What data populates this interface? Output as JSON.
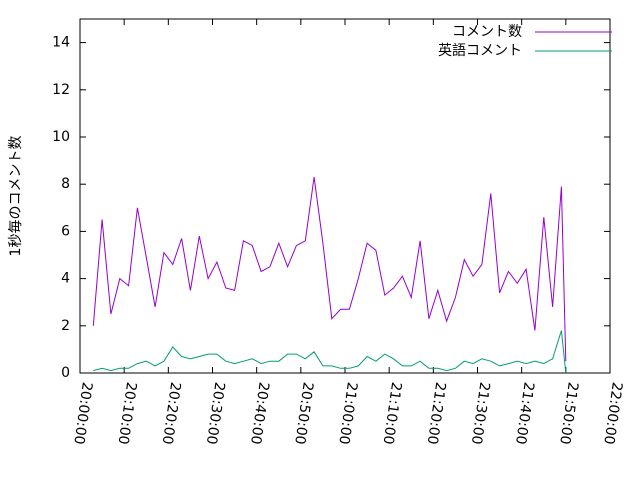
{
  "chart_data": {
    "type": "line",
    "ylabel": "1秒毎のコメント数",
    "x": [
      "20:03:00",
      "20:05:00",
      "20:07:00",
      "20:09:00",
      "20:11:00",
      "20:13:00",
      "20:15:00",
      "20:17:00",
      "20:19:00",
      "20:21:00",
      "20:23:00",
      "20:25:00",
      "20:27:00",
      "20:29:00",
      "20:31:00",
      "20:33:00",
      "20:35:00",
      "20:37:00",
      "20:39:00",
      "20:41:00",
      "20:43:00",
      "20:45:00",
      "20:47:00",
      "20:49:00",
      "20:51:00",
      "20:53:00",
      "20:55:00",
      "20:57:00",
      "20:59:00",
      "21:01:00",
      "21:03:00",
      "21:05:00",
      "21:07:00",
      "21:09:00",
      "21:11:00",
      "21:13:00",
      "21:15:00",
      "21:17:00",
      "21:19:00",
      "21:21:00",
      "21:23:00",
      "21:25:00",
      "21:27:00",
      "21:29:00",
      "21:31:00",
      "21:33:00",
      "21:35:00",
      "21:37:00",
      "21:39:00",
      "21:41:00",
      "21:43:00",
      "21:45:00",
      "21:47:00",
      "21:49:00",
      "21:50:00"
    ],
    "series": [
      {
        "name": "コメント数",
        "color": "#9400d3",
        "values": [
          2.0,
          6.5,
          2.5,
          4.0,
          3.7,
          7.0,
          4.9,
          2.8,
          5.1,
          4.6,
          5.7,
          3.5,
          5.8,
          4.0,
          4.7,
          3.6,
          3.5,
          5.6,
          5.4,
          4.3,
          4.5,
          5.5,
          4.5,
          5.4,
          5.6,
          8.3,
          5.5,
          2.3,
          2.7,
          2.7,
          4.0,
          5.5,
          5.2,
          3.3,
          3.6,
          4.1,
          3.2,
          5.6,
          2.3,
          3.5,
          2.2,
          3.2,
          4.8,
          4.1,
          4.6,
          7.6,
          3.4,
          4.3,
          3.8,
          4.4,
          1.8,
          6.6,
          2.8,
          7.9,
          0.5
        ]
      },
      {
        "name": "英語コメント",
        "color": "#009e73",
        "values": [
          0.1,
          0.2,
          0.1,
          0.2,
          0.2,
          0.4,
          0.5,
          0.3,
          0.5,
          1.1,
          0.7,
          0.6,
          0.7,
          0.8,
          0.8,
          0.5,
          0.4,
          0.5,
          0.6,
          0.4,
          0.5,
          0.5,
          0.8,
          0.8,
          0.6,
          0.9,
          0.3,
          0.3,
          0.2,
          0.2,
          0.3,
          0.7,
          0.5,
          0.8,
          0.6,
          0.3,
          0.3,
          0.5,
          0.2,
          0.2,
          0.1,
          0.2,
          0.5,
          0.4,
          0.6,
          0.5,
          0.3,
          0.4,
          0.5,
          0.4,
          0.5,
          0.4,
          0.6,
          1.8,
          0.0
        ]
      }
    ],
    "xlim": [
      "20:00:00",
      "22:00:00"
    ],
    "xticks": [
      "20:00:00",
      "20:10:00",
      "20:20:00",
      "20:30:00",
      "20:40:00",
      "20:50:00",
      "21:00:00",
      "21:10:00",
      "21:20:00",
      "21:30:00",
      "21:40:00",
      "21:50:00",
      "22:00:00"
    ],
    "ylim": [
      0,
      15
    ],
    "yticks": [
      0,
      2,
      4,
      6,
      8,
      10,
      12,
      14
    ],
    "legend": "top-right"
  }
}
